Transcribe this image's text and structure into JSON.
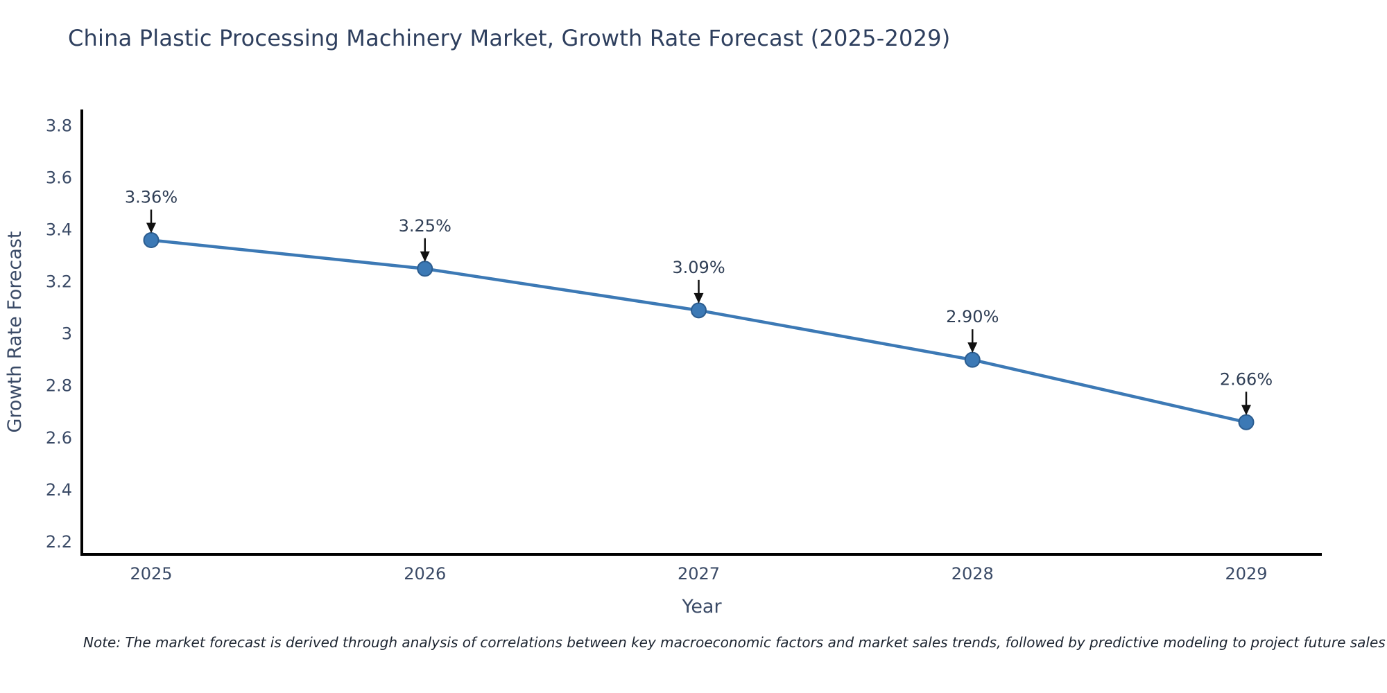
{
  "page": {
    "background": "#ffffff"
  },
  "header": {
    "title": "China Plastic Processing Machinery Market, Growth Rate Forecast (2025-2029)"
  },
  "footnote": {
    "text": "Note: The market forecast is derived through analysis of correlations between key macroeconomic factors and market sales trends, followed by predictive modeling to project future sales"
  },
  "chart_data": {
    "type": "line",
    "title": "China Plastic Processing Machinery Market, Growth Rate Forecast (2025-2029)",
    "x": [
      "2025",
      "2026",
      "2027",
      "2028",
      "2029"
    ],
    "series": [
      {
        "name": "Growth Rate Forecast",
        "values": [
          3.36,
          3.25,
          3.09,
          2.9,
          2.66
        ]
      }
    ],
    "annotations": [
      "3.36%",
      "3.25%",
      "3.09%",
      "2.90%",
      "2.66%"
    ],
    "xlabel": "Year",
    "ylabel": "Growth Rate Forecast",
    "ylim": [
      2.152,
      3.862
    ],
    "yticks": {
      "values": [
        2.2,
        2.4,
        2.6,
        2.8,
        3.0,
        3.2,
        3.4,
        3.6,
        3.8
      ],
      "labels": [
        "2.2",
        "2.4",
        "2.6",
        "2.8",
        "3",
        "3.2",
        "3.4",
        "3.6",
        "3.8"
      ]
    },
    "grid": false,
    "legend_position": "none",
    "colors": {
      "line": "#3c79b5",
      "marker": "#3c79b5",
      "marker_edge": "#2b5c8f",
      "axis": "#000000",
      "tick_text": "#3a4a66",
      "annotation_text": "#2f3e55",
      "arrow": "#111111",
      "title_text": "#2e3f5e"
    }
  }
}
